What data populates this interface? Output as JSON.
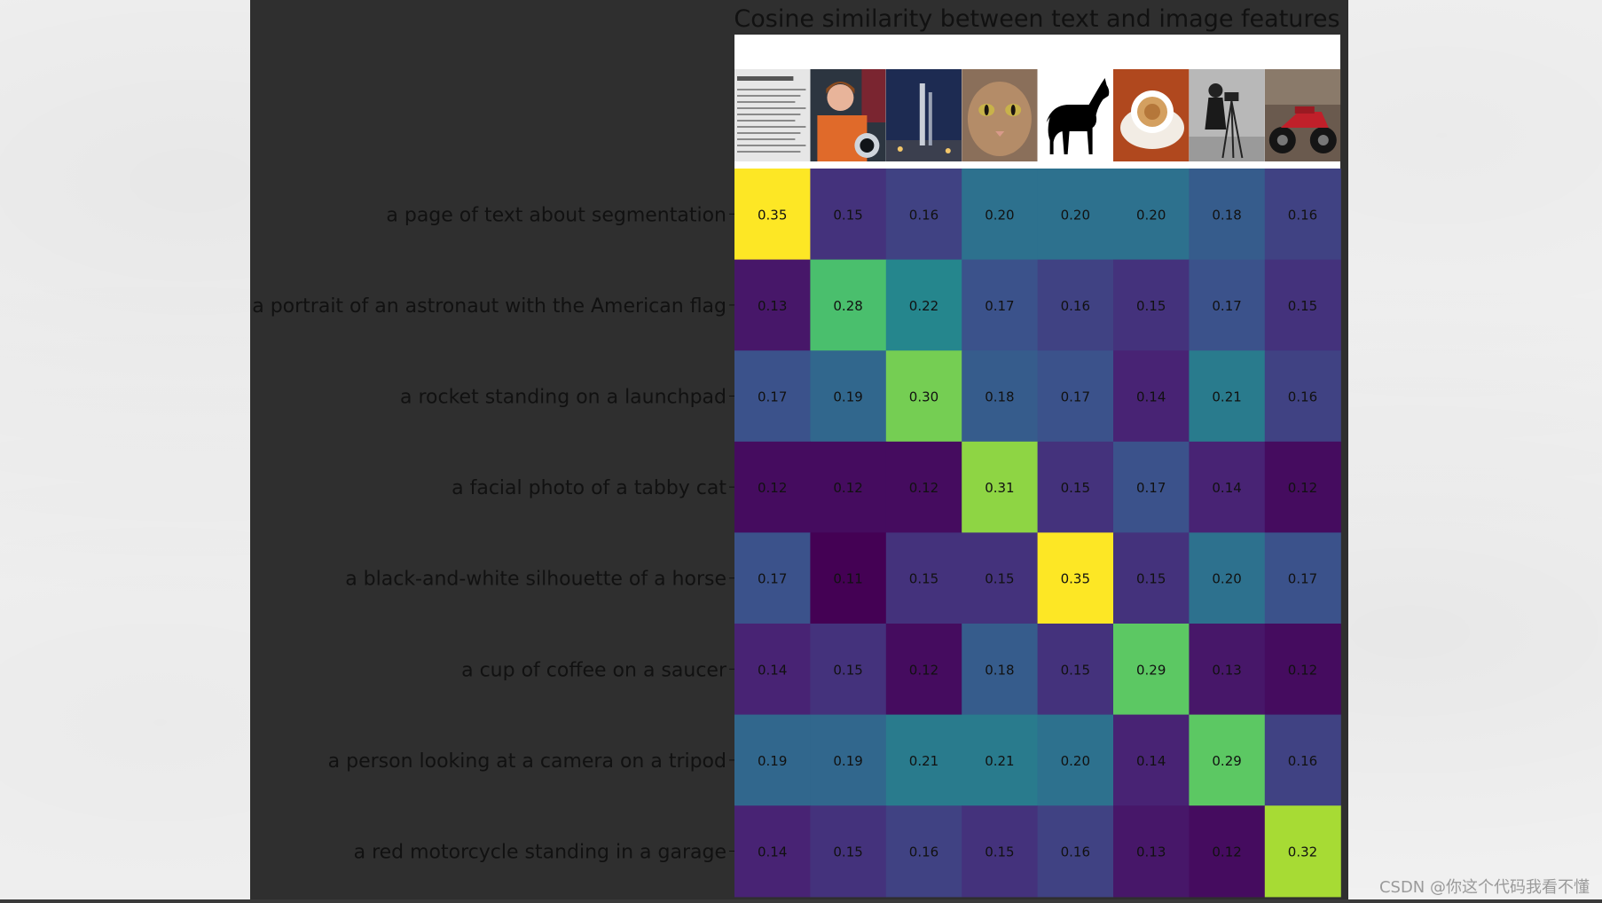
{
  "chart_data": {
    "type": "heatmap",
    "title": "Cosine similarity between text and image features",
    "colormap": "viridis",
    "value_range": [
      0.11,
      0.35
    ],
    "images": [
      {
        "name": "page",
        "icon": "document-page-icon"
      },
      {
        "name": "astronaut",
        "icon": "astronaut-photo-icon"
      },
      {
        "name": "rocket",
        "icon": "rocket-photo-icon"
      },
      {
        "name": "chelsea",
        "icon": "cat-photo-icon"
      },
      {
        "name": "horse",
        "icon": "horse-silhouette-icon"
      },
      {
        "name": "coffee",
        "icon": "coffee-cup-icon"
      },
      {
        "name": "camera",
        "icon": "cameraman-photo-icon"
      },
      {
        "name": "motorcycle",
        "icon": "motorcycle-photo-icon"
      }
    ],
    "rows": [
      "a page of text about segmentation",
      "a portrait of an astronaut with the American flag",
      "a rocket standing on a launchpad",
      "a facial photo of a tabby cat",
      "a black-and-white silhouette of a horse",
      "a cup of coffee on a saucer",
      "a person looking at a camera on a tripod",
      "a red motorcycle standing in a garage"
    ],
    "values": [
      [
        0.35,
        0.15,
        0.16,
        0.2,
        0.2,
        0.2,
        0.18,
        0.16
      ],
      [
        0.13,
        0.28,
        0.22,
        0.17,
        0.16,
        0.15,
        0.17,
        0.15
      ],
      [
        0.17,
        0.19,
        0.3,
        0.18,
        0.17,
        0.14,
        0.21,
        0.16
      ],
      [
        0.12,
        0.12,
        0.12,
        0.31,
        0.15,
        0.17,
        0.14,
        0.12
      ],
      [
        0.17,
        0.11,
        0.15,
        0.15,
        0.35,
        0.15,
        0.2,
        0.17
      ],
      [
        0.14,
        0.15,
        0.12,
        0.18,
        0.15,
        0.29,
        0.13,
        0.12
      ],
      [
        0.19,
        0.19,
        0.21,
        0.21,
        0.2,
        0.14,
        0.29,
        0.16
      ],
      [
        0.14,
        0.15,
        0.16,
        0.15,
        0.16,
        0.13,
        0.12,
        0.32
      ]
    ]
  },
  "watermark": "CSDN @你这个代码我看不懂",
  "colors": {
    "panel": "#2f2f2f",
    "paper": "#f4f4f4",
    "text_dark": "#111111"
  }
}
